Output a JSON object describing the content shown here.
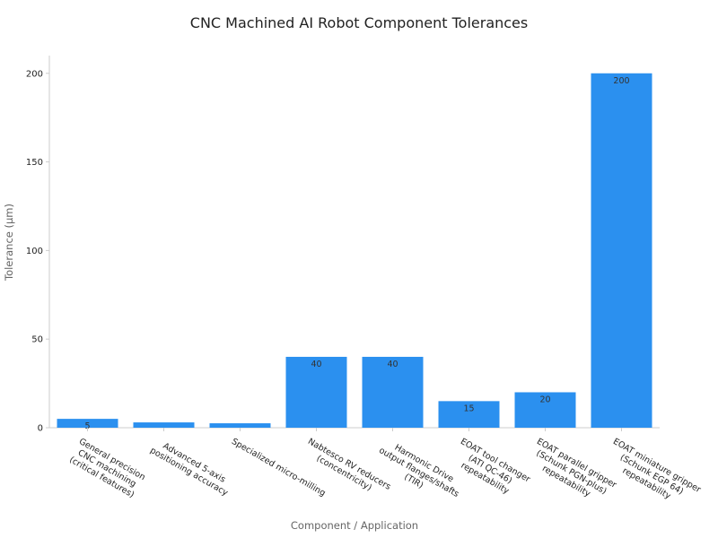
{
  "chart_data": {
    "type": "bar",
    "title": "CNC Machined AI Robot Component Tolerances",
    "xlabel": "Component / Application",
    "ylabel": "Tolerance (μm)",
    "ylim": [
      0,
      210
    ],
    "yticks": [
      0,
      50,
      100,
      150,
      200
    ],
    "grid": false,
    "legend": "none",
    "bar_color": "#2b90ef",
    "categories": [
      [
        "General precision",
        "CNC machining",
        "(critical features)"
      ],
      [
        "Advanced 5-axis",
        "positioning accuracy"
      ],
      [
        "Specialized micro-milling"
      ],
      [
        "Nabtesco RV reducers",
        "(concentricity)"
      ],
      [
        "Harmonic Drive",
        "output flanges/shafts",
        "(TIR)"
      ],
      [
        "EOAT tool changer",
        "(ATI QC-46)",
        "repeatability"
      ],
      [
        "EOAT parallel gripper",
        "(Schunk PGN-plus)",
        "repeatability"
      ],
      [
        "EOAT miniature gripper",
        "(Schunk EGP 64)",
        "repeatability"
      ]
    ],
    "values": [
      5,
      3,
      2.5,
      40,
      40,
      15,
      20,
      200
    ],
    "data_labels": [
      "5",
      "",
      "",
      "40",
      "40",
      "15",
      "20",
      "200"
    ]
  }
}
